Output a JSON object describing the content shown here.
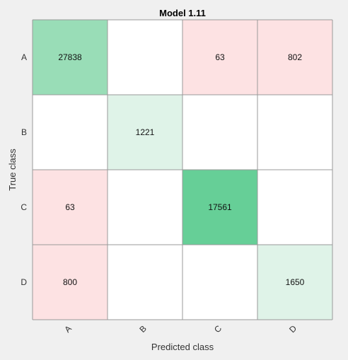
{
  "chart_data": {
    "type": "heatmap",
    "title": "Model 1.11",
    "xlabel": "Predicted class",
    "ylabel": "True class",
    "x_categories": [
      "A",
      "B",
      "C",
      "D"
    ],
    "y_categories": [
      "A",
      "B",
      "C",
      "D"
    ],
    "values": [
      [
        27838,
        null,
        63,
        802
      ],
      [
        null,
        1221,
        null,
        null
      ],
      [
        63,
        null,
        17561,
        null
      ],
      [
        800,
        null,
        null,
        1650
      ]
    ],
    "colors": {
      "diagonal_high": "#66cf97",
      "diagonal_mid": "#99ddb7",
      "diagonal_low": "#dff3e8",
      "off_diagonal": "#fde2e3",
      "empty": "#ffffff",
      "background": "#f0f0f0",
      "grid": "#9a9a9a"
    }
  }
}
